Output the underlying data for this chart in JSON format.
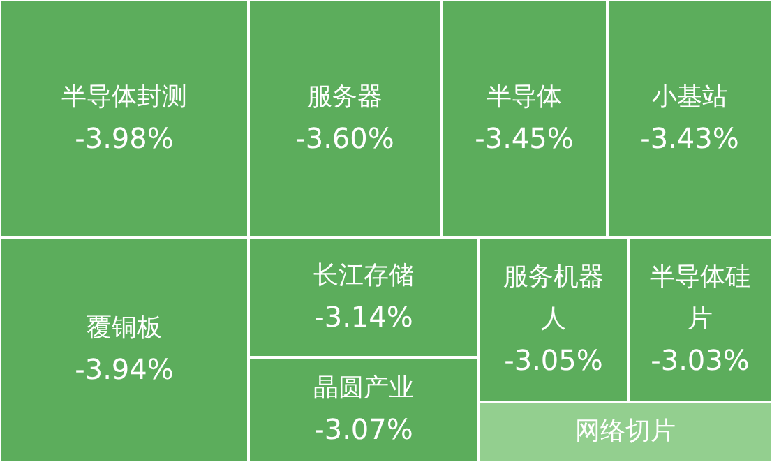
{
  "chart_data": {
    "type": "other",
    "categories": [
      "半导体封测",
      "覆铜板",
      "服务器",
      "半导体",
      "小基站",
      "长江存储",
      "晶圆产业",
      "服务机器人",
      "半导体硅片",
      "网络切片"
    ],
    "values": [
      -3.98,
      -3.94,
      -3.6,
      -3.45,
      -3.43,
      -3.14,
      -3.07,
      -3.05,
      -3.03,
      null
    ],
    "value_labels": [
      "-3.98%",
      "-3.94%",
      "-3.60%",
      "-3.45%",
      "-3.43%",
      "-3.14%",
      "-3.07%",
      "-3.05%",
      "-3.03%",
      null
    ],
    "colors": [
      "#5cad5c",
      "#5cad5c",
      "#5cad5c",
      "#5cad5c",
      "#5cad5c",
      "#5cad5c",
      "#5cad5c",
      "#5cad5c",
      "#5cad5c",
      "#93cf8f"
    ]
  }
}
